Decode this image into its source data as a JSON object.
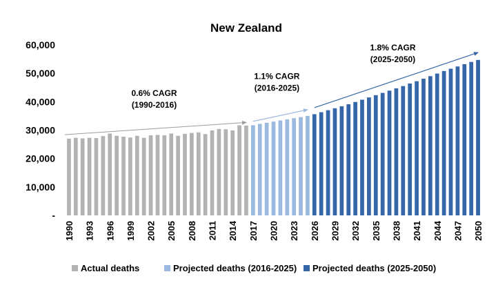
{
  "chart_data": {
    "type": "bar",
    "title": "New Zealand",
    "xlabel": "",
    "ylabel": "",
    "ylim": [
      0,
      60000
    ],
    "yticks": [
      "-",
      "10,000",
      "20,000",
      "30,000",
      "40,000",
      "50,000",
      "60,000"
    ],
    "ytick_values": [
      0,
      10000,
      20000,
      30000,
      40000,
      50000,
      60000
    ],
    "grid": false,
    "legend_position": "bottom",
    "years": [
      1990,
      1991,
      1992,
      1993,
      1994,
      1995,
      1996,
      1997,
      1998,
      1999,
      2000,
      2001,
      2002,
      2003,
      2004,
      2005,
      2006,
      2007,
      2008,
      2009,
      2010,
      2011,
      2012,
      2013,
      2014,
      2015,
      2016,
      2017,
      2018,
      2019,
      2020,
      2021,
      2022,
      2023,
      2024,
      2025,
      2026,
      2027,
      2028,
      2029,
      2030,
      2031,
      2032,
      2033,
      2034,
      2035,
      2036,
      2037,
      2038,
      2039,
      2040,
      2041,
      2042,
      2043,
      2044,
      2045,
      2046,
      2047,
      2048,
      2049,
      2050
    ],
    "x_tick_labels": [
      "1990",
      "1993",
      "1996",
      "1999",
      "2002",
      "2005",
      "2008",
      "2011",
      "2014",
      "2017",
      "2020",
      "2023",
      "2026",
      "2029",
      "2032",
      "2035",
      "2038",
      "2041",
      "2044",
      "2047",
      "2050"
    ],
    "series": [
      {
        "name": "Actual deaths",
        "color": "#b3b3b3",
        "start_year": 1990,
        "values": [
          27000,
          27300,
          27100,
          27300,
          27200,
          27900,
          28800,
          28000,
          27700,
          27400,
          28000,
          27300,
          28200,
          28300,
          28200,
          28800,
          28000,
          28700,
          29000,
          29200,
          28600,
          29900,
          30400,
          30300,
          29900,
          31700,
          31600
        ]
      },
      {
        "name": "Projected deaths (2016-2025)",
        "color": "#9cb9df",
        "start_year": 2017,
        "values": [
          31700,
          32200,
          32600,
          33000,
          33400,
          33800,
          34200,
          34600,
          35000
        ]
      },
      {
        "name": "Projected deaths (2025-2050)",
        "color": "#3566a8",
        "start_year": 2026,
        "values": [
          35600,
          36300,
          37000,
          37700,
          38400,
          39100,
          39900,
          40700,
          41500,
          42300,
          43100,
          43900,
          44700,
          45500,
          46400,
          47200,
          48100,
          49000,
          49900,
          50800,
          51600,
          52400,
          53200,
          54000,
          54700
        ]
      }
    ],
    "annotations": [
      {
        "line1": "0.6% CAGR",
        "line2": "(1990-2016)",
        "from_year": 1990,
        "from_value": 28400,
        "to_year": 2016,
        "to_value": 32700,
        "arrow_color": "#9c9c9c"
      },
      {
        "line1": "1.1% CAGR",
        "line2": "(2016-2025)",
        "from_year": 2017,
        "from_value": 33100,
        "to_year": 2025,
        "to_value": 37200,
        "arrow_color": "#9cb9df"
      },
      {
        "line1": "1.8% CAGR",
        "line2": "(2025-2050)",
        "from_year": 2026,
        "from_value": 37900,
        "to_year": 2050,
        "to_value": 57300,
        "arrow_color": "#3566a8"
      }
    ]
  }
}
